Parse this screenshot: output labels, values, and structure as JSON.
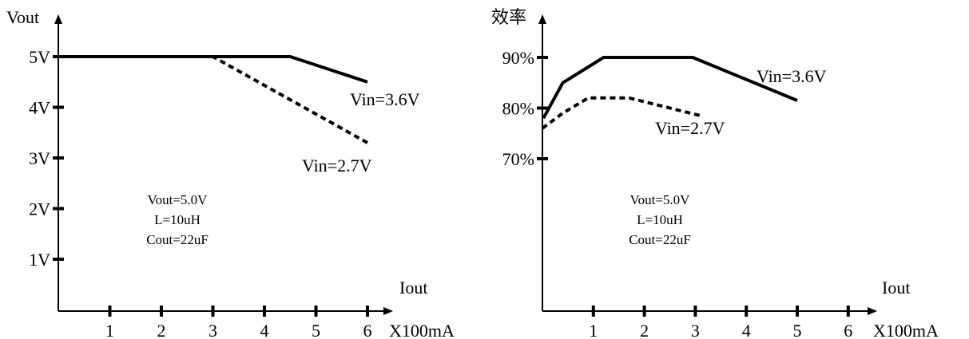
{
  "chart_data": [
    {
      "type": "line",
      "title": "",
      "ylabel": "Vout",
      "xlabel": "Iout",
      "x_unit": "X100mA",
      "x_ticks": [
        1,
        2,
        3,
        4,
        5,
        6
      ],
      "x_tick_labels": [
        "1",
        "2",
        "3",
        "4",
        "5",
        "6"
      ],
      "y_ticks": [
        1,
        2,
        3,
        4,
        5
      ],
      "y_tick_labels": [
        "1V",
        "2V",
        "3V",
        "4V",
        "5V"
      ],
      "xlim": [
        0,
        6.7
      ],
      "ylim": [
        0,
        5.6
      ],
      "series": [
        {
          "name": "Vin=3.6V",
          "style": "solid",
          "x": [
            0,
            4.5,
            6.0
          ],
          "y": [
            5.0,
            5.0,
            4.5
          ]
        },
        {
          "name": "Vin=2.7V",
          "style": "dashed",
          "x": [
            0,
            3.0,
            6.0
          ],
          "y": [
            5.0,
            5.0,
            3.3
          ]
        }
      ],
      "annotations": [
        "Vout=5.0V",
        "L=10uH",
        "Cout=22uF"
      ]
    },
    {
      "type": "line",
      "title": "",
      "ylabel": "效率",
      "xlabel": "Iout",
      "x_unit": "X100mA",
      "x_ticks": [
        1,
        2,
        3,
        4,
        5,
        6
      ],
      "x_tick_labels": [
        "1",
        "2",
        "3",
        "4",
        "5",
        "6"
      ],
      "y_ticks": [
        70,
        80,
        90
      ],
      "y_tick_labels": [
        "70%",
        "80%",
        "90%"
      ],
      "xlim": [
        0,
        6.7
      ],
      "ylim": [
        25,
        96
      ],
      "series": [
        {
          "name": "Vin=3.6V",
          "style": "solid",
          "x": [
            0.02,
            0.4,
            1.2,
            2.95,
            5.0
          ],
          "y": [
            78,
            85,
            90,
            90,
            81.5
          ]
        },
        {
          "name": "Vin=2.7V",
          "style": "dashed",
          "x": [
            0,
            0.4,
            0.9,
            1.7,
            3.1
          ],
          "y": [
            76,
            79,
            82,
            82,
            78.5
          ]
        }
      ],
      "annotations": [
        "Vout=5.0V",
        "L=10uH",
        "Cout=22uF"
      ]
    }
  ],
  "colors": {
    "ink": "#000000",
    "background": "#ffffff"
  }
}
